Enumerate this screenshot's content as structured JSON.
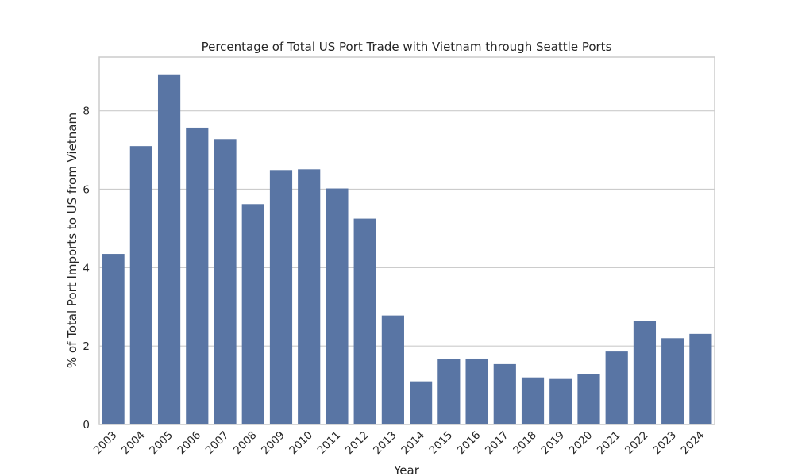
{
  "chart_data": {
    "type": "bar",
    "title": "Percentage of Total US Port Trade with Vietnam through Seattle Ports",
    "xlabel": "Year",
    "ylabel": "% of Total Port Imports to US from Vietnam",
    "categories": [
      "2003",
      "2004",
      "2005",
      "2006",
      "2007",
      "2008",
      "2009",
      "2010",
      "2011",
      "2012",
      "2013",
      "2014",
      "2015",
      "2016",
      "2017",
      "2018",
      "2019",
      "2020",
      "2021",
      "2022",
      "2023",
      "2024"
    ],
    "values": [
      4.35,
      7.1,
      8.93,
      7.57,
      7.28,
      5.62,
      6.49,
      6.51,
      6.02,
      5.25,
      2.78,
      1.1,
      1.66,
      1.68,
      1.54,
      1.2,
      1.16,
      1.29,
      1.86,
      2.65,
      2.2,
      2.31
    ],
    "ylim": [
      0,
      9.37
    ],
    "yticks": [
      "0",
      "2",
      "4",
      "6",
      "8"
    ],
    "grid": true,
    "bar_color": "#5975a4",
    "grid_color": "#cccccc",
    "frame_color": "#cccccc",
    "text_color": "#262626"
  }
}
